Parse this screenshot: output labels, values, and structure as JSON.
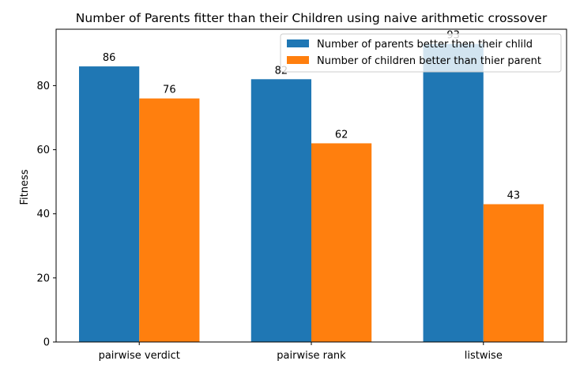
{
  "chart_data": {
    "type": "bar",
    "title": "Number of Parents fitter than their Children  using naive arithmetic crossover",
    "xlabel": "",
    "ylabel": "Fitness",
    "categories": [
      "pairwise verdict",
      "pairwise rank",
      "listwise"
    ],
    "series": [
      {
        "name": "Number of parents better then their chlild",
        "values": [
          86,
          82,
          93
        ],
        "color": "#1f77b4"
      },
      {
        "name": "Number of children better than thier parent",
        "values": [
          76,
          62,
          43
        ],
        "color": "#ff7f0e"
      }
    ],
    "ylim": [
      0,
      97.6
    ],
    "yticks": [
      0,
      20,
      40,
      60,
      80
    ],
    "grid": false,
    "legend": "top-right"
  }
}
